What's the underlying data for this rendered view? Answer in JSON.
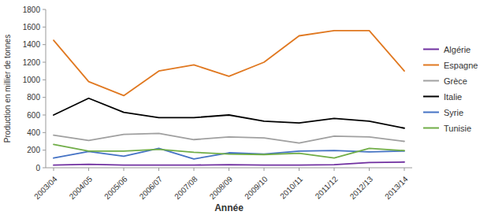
{
  "chart_data": {
    "type": "line",
    "xlabel": "Année",
    "ylabel": "Production en millier de tonnes",
    "categories": [
      "2003/04",
      "2004/05",
      "2005/06",
      "2006/07",
      "2007/08",
      "2008/09",
      "2009/10",
      "2010/11",
      "2011/12",
      "2012/13",
      "2013/14"
    ],
    "series": [
      {
        "name": "Algérie",
        "color": "#7030A0",
        "values": [
          30,
          40,
          30,
          30,
          30,
          35,
          30,
          30,
          35,
          60,
          65
        ]
      },
      {
        "name": "Espagne",
        "color": "#E07820",
        "values": [
          1450,
          980,
          820,
          1100,
          1170,
          1040,
          1200,
          1500,
          1560,
          1560,
          1100
        ]
      },
      {
        "name": "Grèce",
        "color": "#A0A0A0",
        "values": [
          370,
          310,
          380,
          390,
          320,
          350,
          340,
          280,
          360,
          350,
          300
        ]
      },
      {
        "name": "Italie",
        "color": "#000000",
        "values": [
          600,
          790,
          630,
          570,
          570,
          600,
          530,
          510,
          560,
          530,
          450
        ]
      },
      {
        "name": "Syrie",
        "color": "#4472C4",
        "values": [
          110,
          185,
          130,
          220,
          100,
          170,
          155,
          190,
          195,
          180,
          190
        ]
      },
      {
        "name": "Tunisie",
        "color": "#70AD47",
        "values": [
          265,
          190,
          190,
          210,
          175,
          155,
          150,
          165,
          110,
          220,
          195
        ]
      }
    ],
    "ylim": [
      0,
      1800
    ],
    "yticks": [
      0,
      200,
      400,
      600,
      800,
      1000,
      1200,
      1400,
      1600,
      1800
    ],
    "grid": false,
    "legend": "right"
  }
}
